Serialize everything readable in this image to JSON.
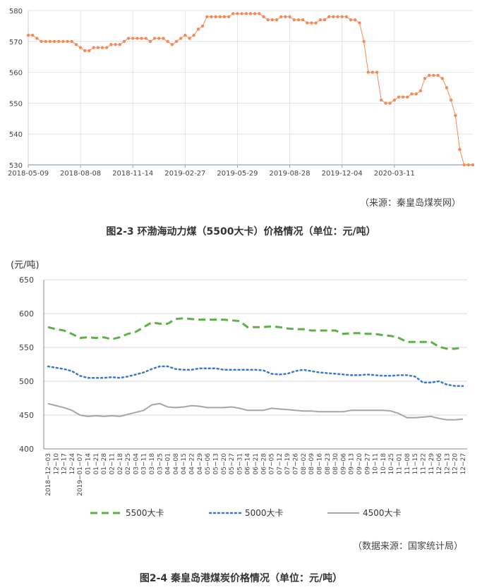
{
  "charts": [
    {
      "type": "line",
      "ylim": [
        530,
        580
      ],
      "yticks": [
        530,
        540,
        550,
        560,
        570,
        580
      ],
      "xtick_labels": [
        "2018-05-09",
        "2018-08-08",
        "2018-11-14",
        "2019-02-27",
        "2019-05-29",
        "2019-08-28",
        "2019-12-04",
        "2020-03-11"
      ],
      "xtick_index": [
        0,
        12,
        24,
        36,
        48,
        60,
        72,
        84
      ],
      "color": "#f28a5a",
      "values": [
        572,
        572,
        571,
        570,
        570,
        570,
        570,
        570,
        570,
        570,
        570,
        569,
        568,
        567,
        567,
        568,
        568,
        568,
        568,
        569,
        569,
        569,
        570,
        571,
        571,
        571,
        571,
        571,
        570,
        571,
        571,
        571,
        570,
        569,
        570,
        571,
        572,
        571,
        572,
        574,
        575,
        578,
        578,
        578,
        578,
        578,
        578,
        579,
        579,
        579,
        579,
        579,
        579,
        579,
        578,
        577,
        577,
        577,
        578,
        578,
        578,
        577,
        577,
        577,
        576,
        576,
        576,
        577,
        577,
        578,
        578,
        578,
        578,
        578,
        577,
        577,
        576,
        570,
        560,
        560,
        560,
        551,
        550,
        550,
        551,
        552,
        552,
        552,
        553,
        553,
        554,
        558,
        559,
        559,
        559,
        558,
        555,
        551,
        546,
        535,
        530,
        530,
        530
      ],
      "source": "（来源：秦皇岛煤炭网）",
      "caption": "图2-3  环渤海动力煤（5500大卡）价格情况（单位：元/吨）"
    },
    {
      "type": "line",
      "ylabel": "(元/吨)",
      "ylim": [
        400,
        650
      ],
      "yticks": [
        400,
        450,
        500,
        550,
        600,
        650
      ],
      "categories": [
        "2018−12−03",
        "12−10",
        "12−17",
        "12−24",
        "2019−01−07",
        "01−14",
        "01−21",
        "01−28",
        "02−11",
        "02−18",
        "02−25",
        "03−04",
        "03−11",
        "03−18",
        "03−25",
        "04−01",
        "04−08",
        "04−15",
        "04−22",
        "04−29",
        "05−06",
        "05−13",
        "05−20",
        "05−27",
        "05−31",
        "06−14",
        "06−21",
        "06−28",
        "07−05",
        "07−12",
        "07−19",
        "07−26",
        "08−02",
        "08−09",
        "08−16",
        "08−23",
        "08−30",
        "09−06",
        "09−13",
        "09−20",
        "09−27",
        "10−11",
        "10−18",
        "10−25",
        "11−01",
        "11−08",
        "11−15",
        "11−22",
        "11−29",
        "12−06",
        "12−13",
        "12−20",
        "12−27"
      ],
      "series": [
        {
          "name": "5500大卡",
          "color": "#5fb04a",
          "dash": "10,6",
          "values": [
            580,
            577,
            575,
            570,
            564,
            565,
            564,
            565,
            562,
            565,
            570,
            573,
            580,
            587,
            585,
            585,
            592,
            593,
            592,
            591,
            591,
            591,
            591,
            590,
            589,
            580,
            580,
            580,
            581,
            580,
            578,
            577,
            577,
            575,
            575,
            575,
            575,
            570,
            571,
            571,
            570,
            570,
            568,
            567,
            564,
            558,
            558,
            558,
            558,
            551,
            548,
            548,
            550
          ]
        },
        {
          "name": "5000大卡",
          "color": "#3a78c9",
          "dash": "2,4",
          "values": [
            522,
            520,
            518,
            515,
            508,
            505,
            505,
            505,
            506,
            505,
            507,
            510,
            513,
            518,
            522,
            522,
            518,
            517,
            517,
            519,
            519,
            519,
            517,
            517,
            517,
            517,
            517,
            516,
            511,
            510,
            511,
            515,
            517,
            515,
            513,
            512,
            511,
            510,
            509,
            509,
            510,
            509,
            508,
            508,
            509,
            509,
            507,
            498,
            498,
            500,
            495,
            493,
            493
          ]
        },
        {
          "name": "4500大卡",
          "color": "#a6a6a6",
          "dash": "",
          "values": [
            467,
            464,
            461,
            457,
            450,
            448,
            449,
            448,
            449,
            448,
            451,
            454,
            457,
            465,
            467,
            462,
            461,
            462,
            464,
            463,
            461,
            461,
            461,
            462,
            460,
            457,
            457,
            457,
            460,
            459,
            458,
            457,
            456,
            456,
            455,
            455,
            455,
            455,
            457,
            457,
            457,
            457,
            457,
            456,
            452,
            446,
            446,
            447,
            448,
            445,
            443,
            443,
            444
          ]
        }
      ],
      "source": "（数据来源：国家统计局）",
      "caption": "图2-4  秦皇岛港煤炭价格情况（单位：元/吨）"
    }
  ]
}
